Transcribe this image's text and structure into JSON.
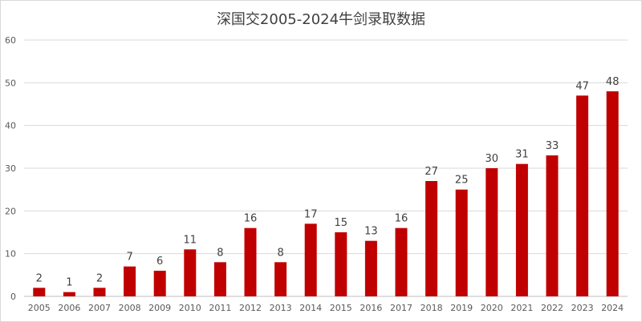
{
  "chart_data": {
    "type": "bar",
    "title": "深国交2005-2024牛剑录取数据",
    "xlabel": "",
    "ylabel": "",
    "categories": [
      "2005",
      "2006",
      "2007",
      "2008",
      "2009",
      "2010",
      "2011",
      "2012",
      "2013",
      "2014",
      "2015",
      "2016",
      "2017",
      "2018",
      "2019",
      "2020",
      "2021",
      "2022",
      "2023",
      "2024"
    ],
    "values": [
      2,
      1,
      2,
      7,
      6,
      11,
      8,
      16,
      8,
      17,
      15,
      13,
      16,
      27,
      25,
      30,
      31,
      33,
      47,
      48
    ],
    "ylim": [
      0,
      60
    ],
    "yticks": [
      0,
      10,
      20,
      30,
      40,
      50,
      60
    ],
    "grid": true,
    "legend": "none",
    "bar_color": "#C00000",
    "grid_color": "#d9d9d9"
  }
}
